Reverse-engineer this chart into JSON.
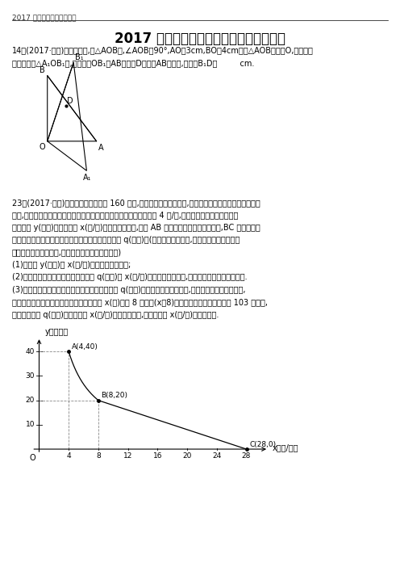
{
  "title": "2017 年湖北省黄冈市中考数学试卷压轴题",
  "header": "2017 年全国中考压轴题系列",
  "bg_color": "#ffffff",
  "graph_points": {
    "A": [
      4,
      40
    ],
    "B": [
      8,
      20
    ],
    "C": [
      28,
      0
    ]
  },
  "x_ticks": [
    4,
    8,
    12,
    16,
    20,
    24,
    28
  ],
  "y_ticks": [
    10,
    20,
    30,
    40
  ],
  "x_label": "x（元/件）",
  "y_label": "y（万件）",
  "triangle_O": [
    0,
    0
  ],
  "triangle_A": [
    3,
    0
  ],
  "triangle_B": [
    0,
    4
  ],
  "triangle_A1": [
    2.4,
    -1.8
  ],
  "triangle_B1": [
    1.6,
    4.8
  ],
  "triangle_D": [
    1.1538,
    2.1538
  ],
  "line_color": "#000000",
  "dashed_color": "#888888",
  "font_size_title": 12,
  "font_size_header": 6.5,
  "font_size_body": 7,
  "font_size_label": 7.5
}
